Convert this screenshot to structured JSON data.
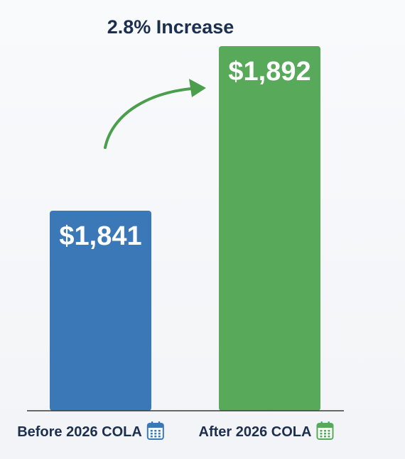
{
  "chart_data": {
    "type": "bar",
    "title": "2.8% Increase",
    "categories": [
      "Before 2026 COLA",
      "After 2026 COLA"
    ],
    "values": [
      1841,
      1892
    ],
    "value_labels": [
      "$1,841",
      "$1,892"
    ],
    "colors": [
      "#3a78b7",
      "#58a95a"
    ],
    "category_icons": [
      "calendar-icon",
      "calendar-icon"
    ],
    "annotation": "curved-arrow-up-right",
    "xlabel": "",
    "ylabel": "",
    "grid": false,
    "legend": "none"
  }
}
